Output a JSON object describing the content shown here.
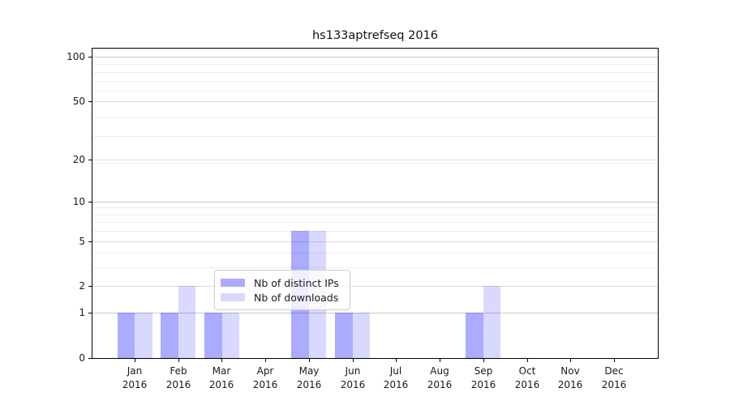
{
  "title": "hs133aptrefseq 2016",
  "chart_data": {
    "type": "bar",
    "title": "hs133aptrefseq 2016",
    "categories": [
      "Jan",
      "Feb",
      "Mar",
      "Apr",
      "May",
      "Jun",
      "Jul",
      "Aug",
      "Sep",
      "Oct",
      "Nov",
      "Dec"
    ],
    "year_label": "2016",
    "series": [
      {
        "name": "Nb of distinct IPs",
        "color": "rgba(0,0,255,0.33)",
        "values": [
          1,
          1,
          1,
          0,
          6,
          1,
          0,
          0,
          1,
          0,
          0,
          0
        ]
      },
      {
        "name": "Nb of downloads",
        "color": "rgba(0,0,255,0.15)",
        "values": [
          1,
          2,
          1,
          0,
          6,
          1,
          0,
          0,
          2,
          0,
          0,
          0
        ]
      }
    ],
    "yscale": "log1p",
    "ylim": [
      0,
      113
    ],
    "yticks": [
      0,
      1,
      2,
      5,
      10,
      20,
      50,
      100
    ],
    "yticks_decade": [
      1,
      10,
      100
    ],
    "yticks_mid": [
      2,
      5,
      20,
      50
    ],
    "yticks_minor": [
      3,
      4,
      6,
      7,
      8,
      9,
      19,
      29,
      39,
      59,
      69,
      79,
      89
    ],
    "grid": true,
    "legend_position": "lower center-right inside plot"
  },
  "colors": {
    "grid_decade": "#c9c9c9",
    "grid_mid": "#dbdbdb",
    "grid_minor": "#ededed",
    "axis": "#000000",
    "text": "#1a1a1a",
    "background": "#ffffff"
  }
}
